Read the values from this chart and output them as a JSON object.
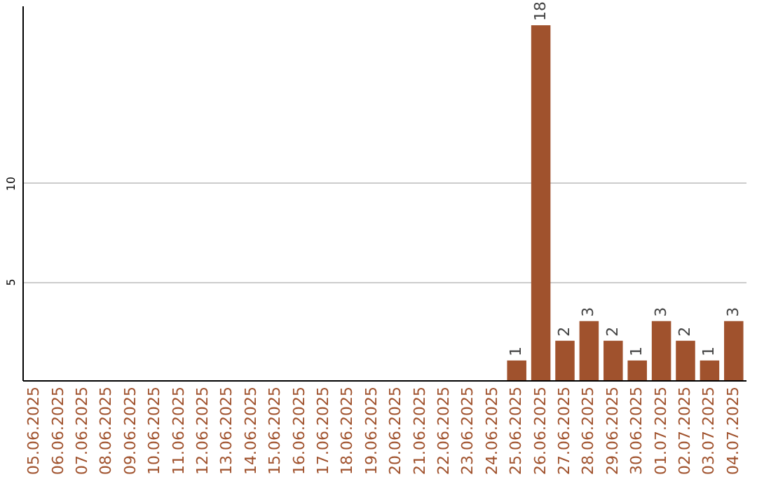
{
  "chart_data": {
    "type": "bar",
    "categories": [
      "05.06.2025",
      "06.06.2025",
      "07.06.2025",
      "08.06.2025",
      "09.06.2025",
      "10.06.2025",
      "11.06.2025",
      "12.06.2025",
      "13.06.2025",
      "14.06.2025",
      "15.06.2025",
      "16.06.2025",
      "17.06.2025",
      "18.06.2025",
      "19.06.2025",
      "20.06.2025",
      "21.06.2025",
      "22.06.2025",
      "23.06.2025",
      "24.06.2025",
      "25.06.2025",
      "26.06.2025",
      "27.06.2025",
      "28.06.2025",
      "29.06.2025",
      "30.06.2025",
      "01.07.2025",
      "02.07.2025",
      "03.07.2025",
      "04.07.2025"
    ],
    "values": [
      0,
      0,
      0,
      0,
      0,
      0,
      0,
      0,
      0,
      0,
      0,
      0,
      0,
      0,
      0,
      0,
      0,
      0,
      0,
      0,
      1,
      18,
      2,
      3,
      2,
      1,
      3,
      2,
      1,
      3
    ],
    "value_labels": [
      null,
      null,
      null,
      null,
      null,
      null,
      null,
      null,
      null,
      null,
      null,
      null,
      null,
      null,
      null,
      null,
      null,
      null,
      null,
      null,
      "1",
      "18",
      "2",
      "3",
      "2",
      "1",
      "3",
      "2",
      "1",
      "3"
    ],
    "color": "#a0522d",
    "ylim": [
      0,
      19
    ],
    "yticks": [
      5,
      10
    ],
    "grid": "y"
  }
}
